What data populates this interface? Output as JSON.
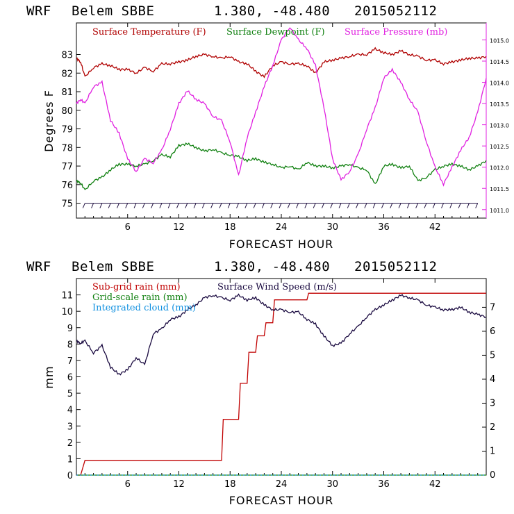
{
  "header": {
    "model": "WRF",
    "location": "Belem SBBE",
    "coords": "1.380, -48.480",
    "run": "2015052112"
  },
  "colors": {
    "temperature": "#b00000",
    "dewpoint": "#108010",
    "pressure": "#e020e0",
    "subgrid_rain": "#c00000",
    "gridscale_rain": "#108010",
    "cloud": "#1090e0",
    "wind": "#1a0a40"
  },
  "chart_data": [
    {
      "type": "line",
      "name": "top",
      "xlabel": "FORECAST HOUR",
      "ylabel": "Degrees F",
      "xlim": [
        0,
        48
      ],
      "ylim": [
        74.2,
        84.7
      ],
      "ylim_right": [
        1010.8,
        1015.4
      ],
      "xticks": [
        6,
        12,
        18,
        24,
        30,
        36,
        42
      ],
      "yticks": [
        75,
        76,
        77,
        78,
        79,
        80,
        81,
        82,
        83
      ],
      "yticks_right": [
        "1011.0",
        "1011.5",
        "1012.0",
        "1012.5",
        "1013.0",
        "1013.5",
        "1014.0",
        "1014.5",
        "1015.0"
      ],
      "yticks_right_values": [
        1011.0,
        1011.5,
        1012.0,
        1012.5,
        1013.0,
        1013.5,
        1014.0,
        1014.5,
        1015.0
      ],
      "series": [
        {
          "name": "Surface Temperature (F)",
          "axis": "left",
          "x": [
            0,
            0.5,
            1,
            2,
            3,
            4,
            5,
            6,
            7,
            8,
            9,
            10,
            11,
            12,
            13,
            14,
            15,
            16,
            17,
            18,
            19,
            20,
            21,
            22,
            23,
            24,
            25,
            26,
            27,
            28,
            29,
            30,
            31,
            32,
            33,
            34,
            35,
            36,
            37,
            38,
            39,
            40,
            41,
            42,
            43,
            44,
            45,
            46,
            47,
            48
          ],
          "y": [
            82.8,
            82.6,
            81.8,
            82.3,
            82.5,
            82.4,
            82.2,
            82.2,
            82.0,
            82.3,
            82.1,
            82.5,
            82.5,
            82.6,
            82.7,
            82.9,
            83.0,
            82.9,
            82.8,
            82.9,
            82.6,
            82.5,
            82.1,
            81.8,
            82.4,
            82.6,
            82.5,
            82.5,
            82.4,
            82.0,
            82.6,
            82.7,
            82.8,
            82.9,
            83.0,
            83.0,
            83.3,
            83.1,
            83.0,
            83.2,
            83.0,
            82.9,
            82.7,
            82.7,
            82.5,
            82.6,
            82.7,
            82.8,
            82.8,
            82.9
          ]
        },
        {
          "name": "Surface Dewpoint (F)",
          "axis": "left",
          "x": [
            0,
            0.5,
            1,
            2,
            3,
            4,
            5,
            6,
            7,
            8,
            9,
            10,
            11,
            12,
            13,
            14,
            15,
            16,
            17,
            18,
            19,
            20,
            21,
            22,
            23,
            24,
            25,
            26,
            27,
            28,
            29,
            30,
            31,
            32,
            33,
            34,
            35,
            36,
            37,
            38,
            39,
            40,
            41,
            42,
            43,
            44,
            45,
            46,
            47,
            48
          ],
          "y": [
            76.2,
            76.1,
            75.7,
            76.2,
            76.4,
            76.8,
            77.1,
            77.1,
            77.0,
            77.1,
            77.3,
            77.6,
            77.5,
            78.1,
            78.2,
            78.0,
            77.8,
            77.9,
            77.7,
            77.6,
            77.5,
            77.3,
            77.4,
            77.2,
            77.1,
            76.9,
            77.0,
            76.8,
            77.2,
            77.0,
            77.0,
            76.9,
            77.0,
            77.1,
            76.9,
            76.8,
            76.0,
            77.0,
            77.1,
            76.9,
            77.0,
            76.2,
            76.4,
            76.8,
            77.0,
            77.1,
            77.0,
            76.8,
            77.0,
            77.3
          ]
        },
        {
          "name": "Surface Pressure (mb)",
          "axis": "right",
          "x": [
            0,
            0.5,
            1,
            2,
            3,
            4,
            5,
            6,
            7,
            8,
            9,
            10,
            11,
            12,
            13,
            14,
            15,
            16,
            17,
            18,
            19,
            20,
            21,
            22,
            23,
            24,
            25,
            26,
            27,
            28,
            29,
            30,
            31,
            32,
            33,
            34,
            35,
            36,
            37,
            38,
            39,
            40,
            41,
            42,
            43,
            44,
            45,
            46,
            47,
            48
          ],
          "y": [
            1013.5,
            1013.6,
            1013.5,
            1013.9,
            1014.0,
            1013.1,
            1012.8,
            1012.2,
            1011.9,
            1012.2,
            1012.1,
            1012.4,
            1012.9,
            1013.5,
            1013.8,
            1013.6,
            1013.5,
            1013.2,
            1013.1,
            1012.6,
            1011.8,
            1012.7,
            1013.3,
            1013.9,
            1014.4,
            1015.0,
            1015.3,
            1015.0,
            1014.8,
            1014.4,
            1013.4,
            1012.2,
            1011.7,
            1011.9,
            1012.3,
            1012.9,
            1013.4,
            1014.1,
            1014.3,
            1014.0,
            1013.6,
            1013.3,
            1012.6,
            1012.0,
            1011.6,
            1012.0,
            1012.4,
            1012.7,
            1013.3,
            1014.1
          ]
        }
      ],
      "wind_barbs_at": 75
    },
    {
      "type": "line",
      "name": "bottom",
      "xlabel": "FORECAST HOUR",
      "ylabel": "mm",
      "xlim": [
        0,
        48
      ],
      "ylim": [
        0,
        12
      ],
      "ylim_right": [
        0,
        8.2
      ],
      "xticks": [
        6,
        12,
        18,
        24,
        30,
        36,
        42
      ],
      "yticks": [
        0,
        1,
        2,
        3,
        4,
        5,
        6,
        7,
        8,
        9,
        10,
        11
      ],
      "yticks_right": [
        0,
        1,
        2,
        3,
        4,
        5,
        6,
        7
      ],
      "series": [
        {
          "name": "Sub-grid rain (mm)",
          "axis": "left",
          "step": true,
          "x": [
            0,
            0.5,
            1,
            17,
            17.2,
            19,
            19.2,
            20,
            20.2,
            21,
            21.2,
            22,
            22.2,
            23,
            23.2,
            27,
            27.2,
            48
          ],
          "y": [
            0,
            0,
            0.9,
            0.9,
            3.4,
            3.4,
            5.6,
            5.6,
            7.5,
            7.5,
            8.5,
            8.5,
            9.3,
            9.3,
            10.7,
            10.7,
            11.1,
            11.1
          ]
        },
        {
          "name": "Grid-scale rain (mm)",
          "axis": "left",
          "x": [
            0,
            48
          ],
          "y": [
            0,
            0
          ]
        },
        {
          "name": "Integrated cloud (mm)",
          "axis": "left",
          "dashed": true,
          "x": [
            0,
            48
          ],
          "y": [
            0,
            0
          ]
        },
        {
          "name": "Surface Wind Speed (m/s)",
          "axis": "right",
          "x": [
            0,
            0.5,
            1,
            2,
            3,
            4,
            5,
            6,
            7,
            8,
            9,
            10,
            11,
            12,
            13,
            14,
            15,
            16,
            17,
            18,
            19,
            20,
            21,
            22,
            23,
            24,
            25,
            26,
            27,
            28,
            29,
            30,
            31,
            32,
            33,
            34,
            35,
            36,
            37,
            38,
            39,
            40,
            41,
            42,
            43,
            44,
            45,
            46,
            47,
            48
          ],
          "y": [
            5.6,
            5.5,
            5.6,
            5.1,
            5.4,
            4.5,
            4.2,
            4.4,
            4.9,
            4.6,
            5.9,
            6.1,
            6.5,
            6.6,
            6.9,
            7.1,
            7.4,
            7.5,
            7.4,
            7.3,
            7.5,
            7.3,
            7.4,
            7.1,
            6.9,
            6.9,
            6.8,
            6.8,
            6.5,
            6.3,
            5.8,
            5.4,
            5.5,
            5.9,
            6.2,
            6.6,
            6.9,
            7.1,
            7.3,
            7.5,
            7.4,
            7.3,
            7.1,
            7.0,
            6.9,
            6.9,
            7.0,
            6.8,
            6.7,
            6.6
          ]
        }
      ]
    }
  ]
}
